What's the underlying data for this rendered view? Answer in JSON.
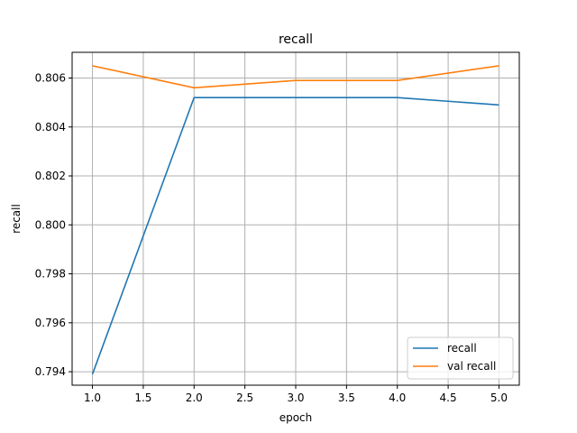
{
  "chart_data": {
    "type": "line",
    "title": "recall",
    "xlabel": "epoch",
    "ylabel": "recall",
    "x": [
      1,
      2,
      3,
      4,
      5
    ],
    "xlim": [
      0.8,
      5.2
    ],
    "ylim": [
      0.79345,
      0.80705
    ],
    "xticks": [
      1.0,
      1.5,
      2.0,
      2.5,
      3.0,
      3.5,
      4.0,
      4.5,
      5.0
    ],
    "xtick_labels": [
      "1.0",
      "1.5",
      "2.0",
      "2.5",
      "3.0",
      "3.5",
      "4.0",
      "4.5",
      "5.0"
    ],
    "yticks": [
      0.794,
      0.796,
      0.798,
      0.8,
      0.802,
      0.804,
      0.806
    ],
    "ytick_labels": [
      "0.794",
      "0.796",
      "0.798",
      "0.800",
      "0.802",
      "0.804",
      "0.806"
    ],
    "grid": true,
    "legend_position": "lower-right",
    "series": [
      {
        "name": "recall",
        "color": "#1f77b4",
        "values": [
          0.7939,
          0.8052,
          0.8052,
          0.8052,
          0.8049
        ]
      },
      {
        "name": "val recall",
        "color": "#ff7f0e",
        "values": [
          0.8065,
          0.8056,
          0.8059,
          0.8059,
          0.8065
        ]
      }
    ]
  }
}
